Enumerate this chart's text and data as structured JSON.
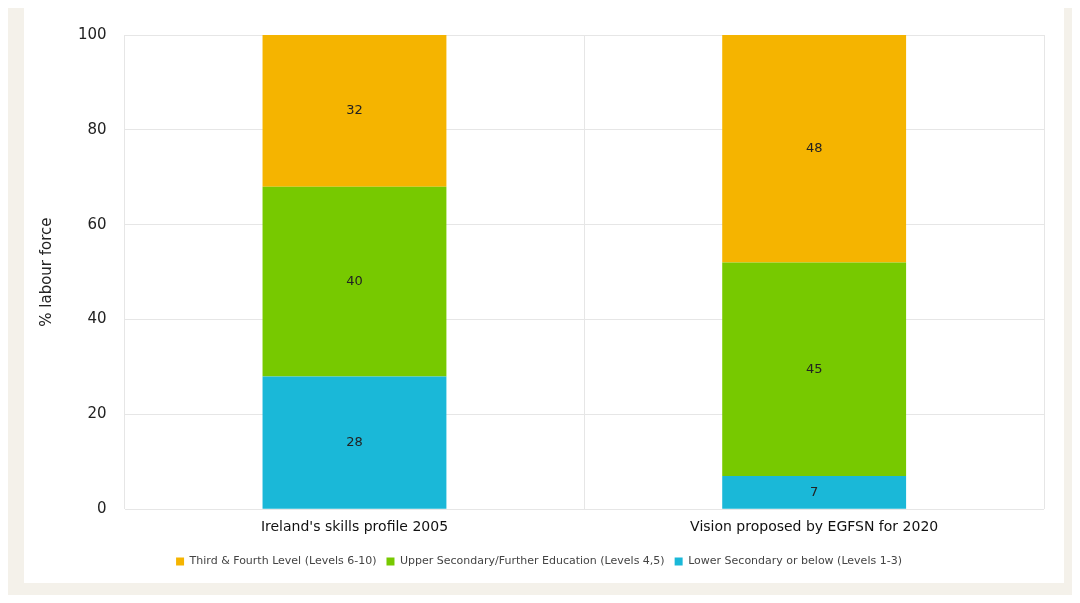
{
  "chart_data": {
    "type": "bar",
    "stacked": true,
    "ylabel": "% labour force",
    "categories": [
      "Ireland's skills profile 2005",
      "Vision proposed by EGFSN for 2020"
    ],
    "series": [
      {
        "name": "Lower Secondary or below (Levels 1-3)",
        "color": "#1ab8d8",
        "values": [
          28,
          7
        ]
      },
      {
        "name": "Upper Secondary/Further Education (Levels 4,5)",
        "color": "#77c900",
        "values": [
          40,
          45
        ]
      },
      {
        "name": "Third & Fourth Level (Levels 6-10)",
        "color": "#f5b400",
        "values": [
          32,
          48
        ]
      }
    ],
    "ylim": [
      0,
      100
    ],
    "yticks": [
      0,
      20,
      40,
      60,
      80,
      100
    ],
    "grid": true,
    "legend": "bottom",
    "data_labels": true
  }
}
